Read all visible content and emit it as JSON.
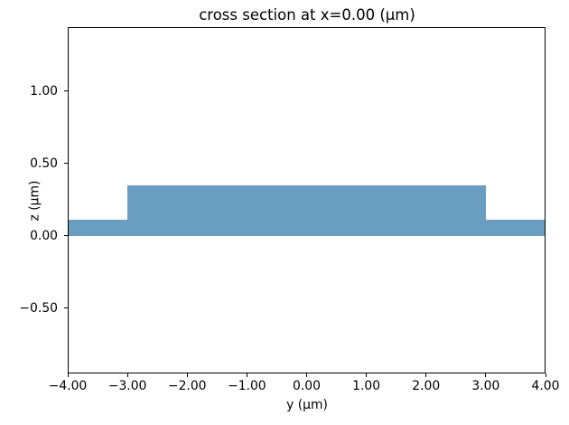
{
  "chart_data": {
    "type": "area",
    "title": "cross section at x=0.00 (μm)",
    "xlabel": "y (μm)",
    "ylabel": "z (μm)",
    "xlim": [
      -4.0,
      4.0
    ],
    "ylim": [
      -0.95,
      1.44
    ],
    "grid": false,
    "legend_position": "none",
    "x_ticks": [
      {
        "value": -4.0,
        "label": "−4.00"
      },
      {
        "value": -3.0,
        "label": "−3.00"
      },
      {
        "value": -2.0,
        "label": "−2.00"
      },
      {
        "value": -1.0,
        "label": "−1.00"
      },
      {
        "value": 0.0,
        "label": "0.00"
      },
      {
        "value": 1.0,
        "label": "1.00"
      },
      {
        "value": 2.0,
        "label": "2.00"
      },
      {
        "value": 3.0,
        "label": "3.00"
      },
      {
        "value": 4.0,
        "label": "4.00"
      }
    ],
    "y_ticks": [
      {
        "value": 1.0,
        "label": "1.00"
      },
      {
        "value": 0.5,
        "label": "0.50"
      },
      {
        "value": 0.0,
        "label": "0.00"
      },
      {
        "value": -0.5,
        "label": "−0.50"
      }
    ],
    "colors": {
      "structure_fill": "#6A9EC1",
      "axis": "#000000",
      "background": "#FFFFFF"
    },
    "structures": [
      {
        "name": "slab",
        "y_range": [
          -4.0,
          4.0
        ],
        "z_range": [
          0.0,
          0.11
        ]
      },
      {
        "name": "ridge",
        "y_range": [
          -3.0,
          3.0
        ],
        "z_range": [
          0.0,
          0.35
        ]
      }
    ]
  }
}
